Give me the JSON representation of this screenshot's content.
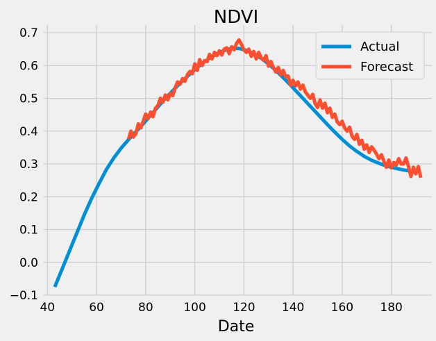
{
  "chart_data": {
    "type": "line",
    "title": "NDVI",
    "xlabel": "Date",
    "ylabel": "",
    "xlim": [
      38.5,
      196.5
    ],
    "ylim": [
      -0.1,
      0.715
    ],
    "xticks": [
      40,
      60,
      80,
      100,
      120,
      140,
      160,
      180
    ],
    "yticks": [
      -0.1,
      0.0,
      0.1,
      0.2,
      0.3,
      0.4,
      0.5,
      0.6,
      0.7
    ],
    "grid": true,
    "legend_position": "top-right",
    "series": [
      {
        "name": "Actual",
        "color": "#008fd5",
        "x": [
          43,
          46,
          49,
          52,
          55,
          58,
          61,
          64,
          67,
          70,
          73,
          76,
          79,
          82,
          85,
          88,
          91,
          94,
          97,
          100,
          103,
          106,
          109,
          112,
          115,
          118,
          121,
          124,
          127,
          130,
          133,
          136,
          139,
          142,
          145,
          148,
          151,
          154,
          157,
          160,
          163,
          166,
          169,
          172,
          175,
          178,
          181,
          184,
          187,
          190
        ],
        "y": [
          -0.075,
          -0.02,
          0.035,
          0.09,
          0.145,
          0.195,
          0.24,
          0.283,
          0.318,
          0.348,
          0.374,
          0.398,
          0.422,
          0.448,
          0.474,
          0.5,
          0.523,
          0.546,
          0.567,
          0.587,
          0.606,
          0.622,
          0.636,
          0.646,
          0.652,
          0.652,
          0.646,
          0.636,
          0.622,
          0.605,
          0.585,
          0.563,
          0.54,
          0.516,
          0.492,
          0.468,
          0.444,
          0.42,
          0.397,
          0.375,
          0.355,
          0.338,
          0.323,
          0.311,
          0.302,
          0.294,
          0.288,
          0.283,
          0.279,
          0.274
        ]
      },
      {
        "name": "Forecast",
        "color": "#fc4f30",
        "x": [
          73,
          74,
          75,
          76,
          77,
          78,
          79,
          80,
          81,
          82,
          83,
          84,
          85,
          86,
          87,
          88,
          89,
          90,
          91,
          92,
          93,
          94,
          95,
          96,
          97,
          98,
          99,
          100,
          101,
          102,
          103,
          104,
          105,
          106,
          107,
          108,
          109,
          110,
          111,
          112,
          113,
          114,
          115,
          116,
          117,
          118,
          119,
          120,
          121,
          122,
          123,
          124,
          125,
          126,
          127,
          128,
          129,
          130,
          131,
          132,
          133,
          134,
          135,
          136,
          137,
          138,
          139,
          140,
          141,
          142,
          143,
          144,
          145,
          146,
          147,
          148,
          149,
          150,
          151,
          152,
          153,
          154,
          155,
          156,
          157,
          158,
          159,
          160,
          161,
          162,
          163,
          164,
          165,
          166,
          167,
          168,
          169,
          170,
          171,
          172,
          173,
          174,
          175,
          176,
          177,
          178,
          179,
          180,
          181,
          182,
          183,
          184,
          185,
          186,
          187,
          188,
          189,
          190,
          191,
          192
        ],
        "y": [
          0.375,
          0.4,
          0.382,
          0.392,
          0.422,
          0.41,
          0.43,
          0.452,
          0.438,
          0.458,
          0.444,
          0.47,
          0.478,
          0.5,
          0.488,
          0.51,
          0.495,
          0.515,
          0.508,
          0.532,
          0.55,
          0.543,
          0.56,
          0.552,
          0.572,
          0.582,
          0.575,
          0.605,
          0.585,
          0.618,
          0.6,
          0.615,
          0.612,
          0.634,
          0.62,
          0.64,
          0.63,
          0.645,
          0.632,
          0.65,
          0.654,
          0.636,
          0.657,
          0.648,
          0.668,
          0.678,
          0.664,
          0.648,
          0.64,
          0.65,
          0.628,
          0.643,
          0.62,
          0.64,
          0.624,
          0.616,
          0.63,
          0.598,
          0.612,
          0.594,
          0.58,
          0.594,
          0.572,
          0.585,
          0.566,
          0.568,
          0.54,
          0.555,
          0.538,
          0.55,
          0.528,
          0.54,
          0.52,
          0.51,
          0.5,
          0.512,
          0.484,
          0.472,
          0.495,
          0.47,
          0.485,
          0.456,
          0.47,
          0.442,
          0.452,
          0.428,
          0.42,
          0.43,
          0.41,
          0.4,
          0.412,
          0.385,
          0.375,
          0.39,
          0.36,
          0.372,
          0.345,
          0.358,
          0.335,
          0.352,
          0.342,
          0.33,
          0.316,
          0.328,
          0.308,
          0.29,
          0.312,
          0.288,
          0.304,
          0.296,
          0.316,
          0.3,
          0.3,
          0.318,
          0.292,
          0.262,
          0.29,
          0.27,
          0.292,
          0.258
        ]
      }
    ]
  }
}
